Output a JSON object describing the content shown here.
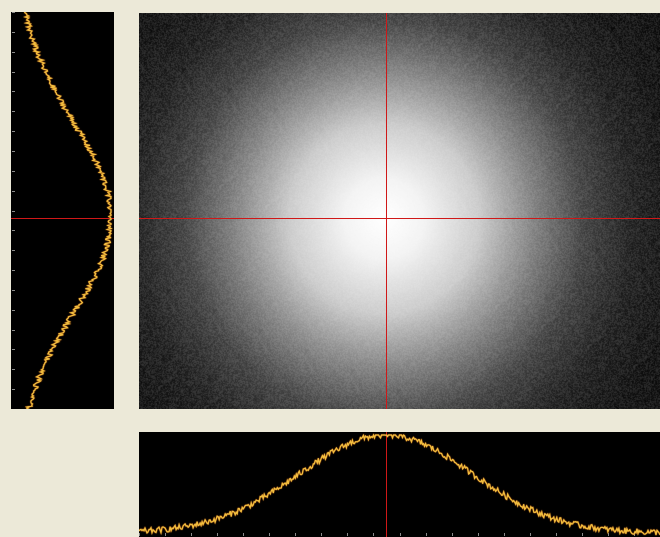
{
  "colors": {
    "background": "#ece9d8",
    "panel": "#000000",
    "crosshair": "#d01818",
    "profile_trace": "#f0c040",
    "profile_trace_edge": "#ff7a1a",
    "axis_ticks": "#8a8a8a"
  },
  "beam_view": {
    "crosshair_x_fraction": 0.474,
    "crosshair_y_fraction": 0.518
  },
  "chart_data": [
    {
      "type": "line",
      "name": "horizontal-profile",
      "x_range": [
        0,
        1
      ],
      "peak_x": 0.474,
      "sigma": 0.165,
      "baseline": 0.02,
      "noise": 0.03,
      "ylim": [
        0,
        1
      ],
      "tick_count": 20
    },
    {
      "type": "line",
      "name": "vertical-profile",
      "y_range": [
        0,
        1
      ],
      "peak_y": 0.518,
      "sigma": 0.24,
      "baseline": 0.03,
      "noise": 0.03,
      "xlim": [
        0,
        1
      ],
      "tick_count": 20
    }
  ]
}
